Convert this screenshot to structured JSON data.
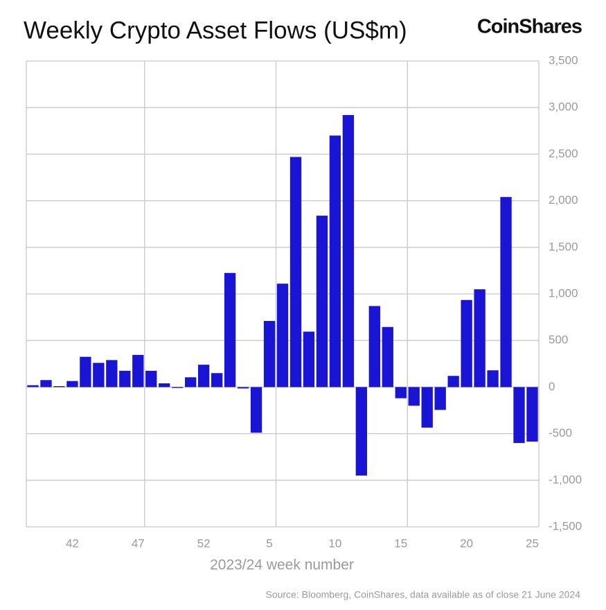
{
  "chart_data": {
    "type": "bar",
    "title": "Weekly Crypto Asset Flows (US$m)",
    "brand": "CoinShares",
    "x_label": "2023/24 week number",
    "source": "Source: Bloomberg, CoinShares, data available as of close 21 June 2024",
    "categories": [
      null,
      null,
      null,
      "42",
      null,
      null,
      null,
      null,
      "47",
      null,
      null,
      null,
      null,
      "52",
      null,
      null,
      null,
      null,
      "5",
      null,
      null,
      null,
      null,
      "10",
      null,
      null,
      null,
      null,
      "15",
      null,
      null,
      null,
      null,
      "20",
      null,
      null,
      null,
      null,
      "25"
    ],
    "values": [
      20,
      75,
      10,
      65,
      325,
      260,
      290,
      175,
      345,
      175,
      40,
      -10,
      105,
      240,
      150,
      1225,
      -15,
      -490,
      710,
      1110,
      2470,
      595,
      1840,
      2700,
      2920,
      -950,
      870,
      645,
      -120,
      -200,
      -435,
      -245,
      120,
      935,
      1050,
      180,
      2040,
      -600,
      -585
    ],
    "color": "#1a14d4",
    "ylim": [
      -1500,
      3500
    ],
    "yticks": [
      {
        "value": -1500,
        "label": "-1,500"
      },
      {
        "value": -1000,
        "label": "-1,000"
      },
      -500,
      0,
      500,
      {
        "value": 1000,
        "label": "1,000"
      },
      {
        "value": 1500,
        "label": "1,500"
      },
      {
        "value": 2000,
        "label": "2,000"
      },
      {
        "value": 2500,
        "label": "2,500"
      },
      {
        "value": 3000,
        "label": "3,000"
      },
      {
        "value": 3500,
        "label": "3,500"
      }
    ],
    "grid": true
  }
}
